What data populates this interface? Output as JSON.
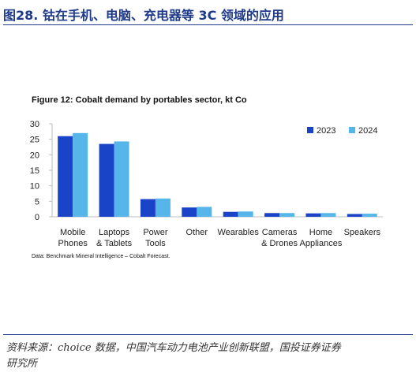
{
  "figure": {
    "title": "图28. 钴在手机、电脑、充电器等 3C 领域的应用",
    "source_line1": "资料来源：choice 数据，中国汽车动力电池产业创新联盟，国投证券证券",
    "source_line2": "研究所"
  },
  "chart_data": {
    "type": "bar",
    "title": "Figure 12: Cobalt demand by portables sector, kt Co",
    "categories": [
      [
        "Mobile",
        "Phones"
      ],
      [
        "Laptops",
        "& Tablets"
      ],
      [
        "Power",
        "Tools"
      ],
      [
        "Other"
      ],
      [
        "Wearables"
      ],
      [
        "Cameras",
        "& Drones"
      ],
      [
        "Home",
        "Appliances"
      ],
      [
        "Speakers"
      ]
    ],
    "series": [
      {
        "name": "2023",
        "color": "#1a44c7",
        "values": [
          26,
          23.5,
          5.7,
          3.0,
          1.6,
          1.2,
          1.1,
          0.9
        ]
      },
      {
        "name": "2024",
        "color": "#56b6ea",
        "values": [
          27,
          24.3,
          5.9,
          3.2,
          1.7,
          1.2,
          1.2,
          1.0
        ]
      }
    ],
    "ylim": [
      0,
      30
    ],
    "yticks": [
      0,
      5,
      10,
      15,
      20,
      25,
      30
    ],
    "grid": false,
    "legend_position": "top-right",
    "source_note": "Data: Benchmark Mineral Intelligence – Cobalt Forecast."
  }
}
